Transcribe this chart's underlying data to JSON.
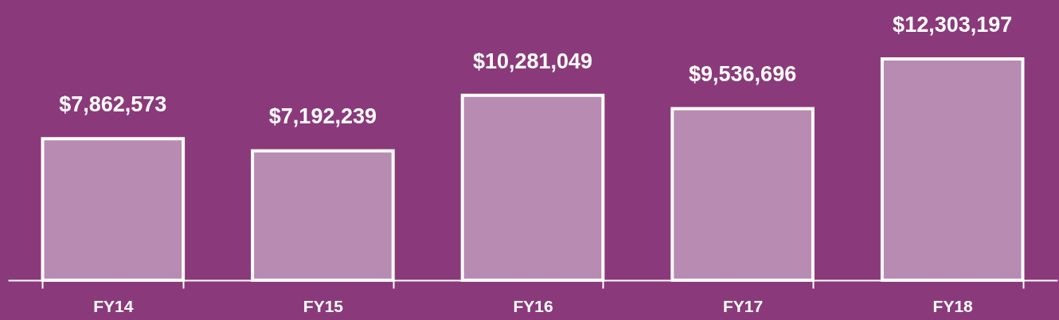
{
  "chart_data": {
    "type": "bar",
    "categories": [
      "FY14",
      "FY15",
      "FY16",
      "FY17",
      "FY18"
    ],
    "values": [
      7862573,
      7192239,
      10281049,
      9536696,
      12303197
    ],
    "value_labels": [
      "$7,862,573",
      "$7,192,239",
      "$10,281,049",
      "$9,536,696",
      "$12,303,197"
    ],
    "color": "#b88bb3",
    "grid": false
  }
}
